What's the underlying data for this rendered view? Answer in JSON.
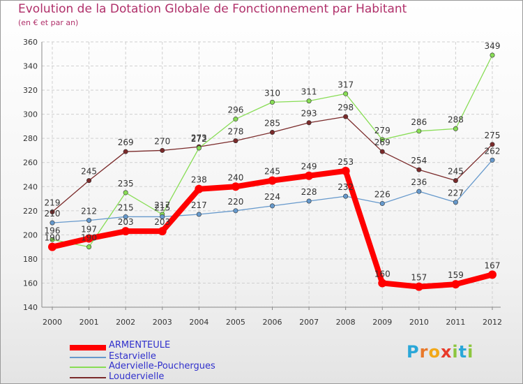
{
  "title": "Evolution de la Dotation Globale de Fonctionnement par Habitant",
  "subtitle": "(en € et par an)",
  "logo": {
    "text": "Proxiti",
    "letters": [
      "P",
      "r",
      "o",
      "x",
      "i",
      "t",
      "i"
    ],
    "colors": [
      "#2aa7d8",
      "#e8782a",
      "#f2a818",
      "#e83a2a",
      "#8cc63e",
      "#2aa7d8",
      "#8cc63e"
    ]
  },
  "chart_data": {
    "type": "line",
    "title": "Evolution de la Dotation Globale de Fonctionnement par Habitant",
    "subtitle": "(en € et par an)",
    "xlabel": "",
    "ylabel": "",
    "x": [
      "2000",
      "2001",
      "2002",
      "2003",
      "2004",
      "2005",
      "2006",
      "2007",
      "2008",
      "2009",
      "2010",
      "2011",
      "2012"
    ],
    "ylim": [
      140,
      360
    ],
    "yticks": [
      140,
      160,
      180,
      200,
      220,
      240,
      260,
      280,
      300,
      320,
      340,
      360
    ],
    "grid": true,
    "legend_position": "bottom-left",
    "series": [
      {
        "name": "ARMENTEULE",
        "color": "#ff0000",
        "width": "thick",
        "values": [
          190,
          197,
          203,
          203,
          238,
          240,
          245,
          249,
          253,
          160,
          157,
          159,
          167
        ],
        "labels": [
          "190",
          "197",
          "203",
          "203",
          "238",
          "240",
          "245",
          "249",
          "253",
          "160",
          "157",
          "159",
          "167"
        ]
      },
      {
        "name": "Estarvielle",
        "color": "#6699cc",
        "width": "thin",
        "values": [
          210,
          212,
          215,
          215,
          217,
          220,
          224,
          228,
          232,
          226,
          236,
          227,
          262
        ],
        "labels": [
          "210",
          "212",
          "215",
          "215",
          "217",
          "220",
          "224",
          "228",
          "232",
          "226",
          "236",
          "227",
          "262"
        ]
      },
      {
        "name": "Adervielle-Pouchergues",
        "color": "#88dd55",
        "width": "thin",
        "values": [
          196,
          190,
          235,
          217,
          272,
          296,
          310,
          311,
          317,
          279,
          286,
          288,
          349
        ],
        "labels": [
          "196",
          "190",
          "235",
          "217",
          "272",
          "296",
          "310",
          "311",
          "317",
          "279",
          "286",
          "288",
          "349"
        ]
      },
      {
        "name": "Loudervielle",
        "color": "#7a2a2a",
        "width": "thin",
        "values": [
          219,
          245,
          269,
          270,
          273,
          278,
          285,
          293,
          298,
          269,
          254,
          245,
          275
        ],
        "labels": [
          "219",
          "245",
          "269",
          "270",
          "273",
          "278",
          "285",
          "293",
          "298",
          "269",
          "254",
          "245",
          "275"
        ]
      }
    ]
  }
}
